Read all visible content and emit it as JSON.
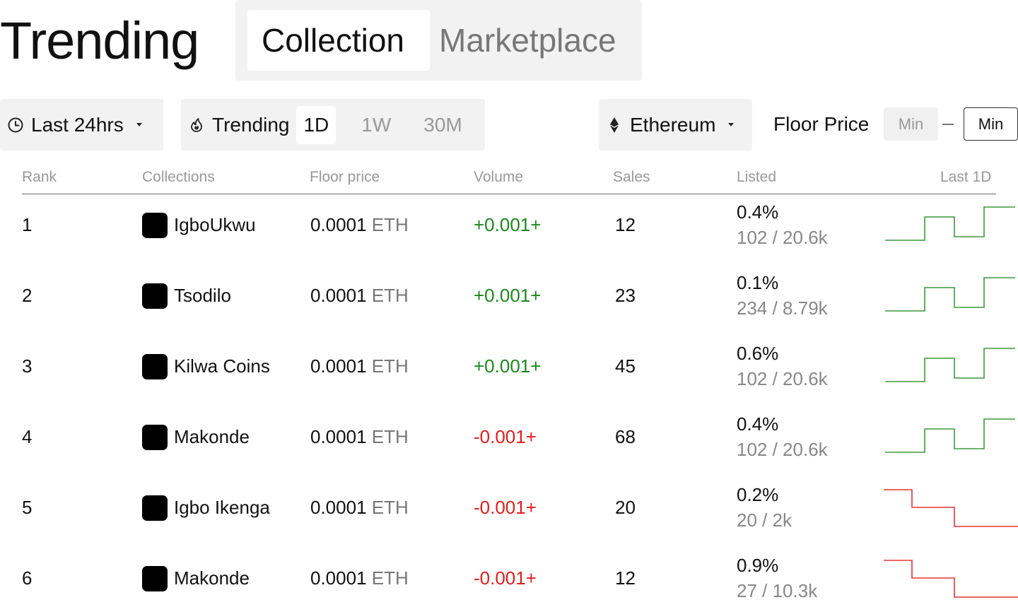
{
  "header": {
    "title": "Trending",
    "tabs": [
      {
        "label": "Collection",
        "active": true
      },
      {
        "label": "Marketplace",
        "active": false
      }
    ]
  },
  "filters": {
    "time": {
      "icon": "clock-icon",
      "label": "Last 24hrs"
    },
    "trending": {
      "icon": "flame-icon",
      "label": "Trending",
      "periods": [
        {
          "label": "1D",
          "active": true
        },
        {
          "label": "1W",
          "active": false
        },
        {
          "label": "30M",
          "active": false
        }
      ]
    },
    "chain": {
      "icon": "ethereum-icon",
      "label": "Ethereum"
    },
    "floor_price": {
      "label": "Floor Price",
      "min_placeholder": "Min",
      "max_placeholder": "Min"
    }
  },
  "table": {
    "columns": [
      "Rank",
      "Collections",
      "Floor price",
      "Volume",
      "Sales",
      "Listed",
      "Last 1D"
    ],
    "rows": [
      {
        "rank": "1",
        "name": "IgboUkwu",
        "floor_value": "0.0001",
        "floor_unit": "ETH",
        "volume": "+0.001+",
        "trend": "up",
        "sales": "12",
        "listed_pct": "0.4%",
        "listed_ratio": "102 / 20.6k"
      },
      {
        "rank": "2",
        "name": "Tsodilo",
        "floor_value": "0.0001",
        "floor_unit": "ETH",
        "volume": "+0.001+",
        "trend": "up",
        "sales": "23",
        "listed_pct": "0.1%",
        "listed_ratio": "234 / 8.79k"
      },
      {
        "rank": "3",
        "name": "Kilwa Coins",
        "floor_value": "0.0001",
        "floor_unit": "ETH",
        "volume": "+0.001+",
        "trend": "up",
        "sales": "45",
        "listed_pct": "0.6%",
        "listed_ratio": "102 / 20.6k"
      },
      {
        "rank": "4",
        "name": "Makonde",
        "floor_value": "0.0001",
        "floor_unit": "ETH",
        "volume": "-0.001+",
        "trend": "up",
        "sales": "68",
        "listed_pct": "0.4%",
        "listed_ratio": "102 / 20.6k"
      },
      {
        "rank": "5",
        "name": "Igbo Ikenga",
        "floor_value": "0.0001",
        "floor_unit": "ETH",
        "volume": "-0.001+",
        "trend": "down",
        "sales": "20",
        "listed_pct": "0.2%",
        "listed_ratio": "20 / 2k"
      },
      {
        "rank": "6",
        "name": "Makonde",
        "floor_value": "0.0001",
        "floor_unit": "ETH",
        "volume": "-0.001+",
        "trend": "down",
        "sales": "12",
        "listed_pct": "0.9%",
        "listed_ratio": "27 / 10.3k"
      }
    ]
  },
  "colors": {
    "up": "#1a8a1a",
    "down": "#e81c1c",
    "spark_up": "#3a9a3a",
    "spark_down": "#e83333",
    "muted": "#999999"
  }
}
